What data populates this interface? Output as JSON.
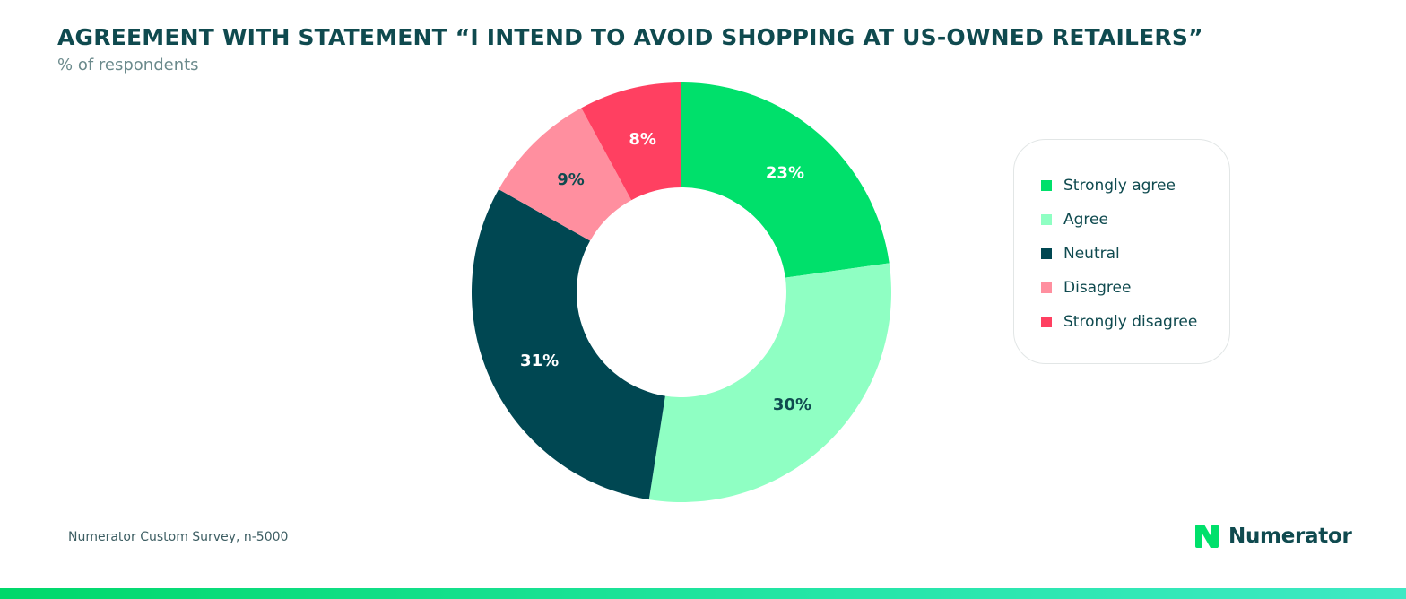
{
  "header": {
    "title": "AGREEMENT WITH STATEMENT “I INTEND TO AVOID SHOPPING AT US-OWNED RETAILERS”",
    "subtitle": "% of respondents"
  },
  "footer": {
    "source": "Numerator Custom Survey, n-5000",
    "brand": "Numerator"
  },
  "colors": {
    "strongly_agree": "#00e06b",
    "agree": "#8fffc3",
    "neutral": "#004752",
    "disagree": "#ff8f9f",
    "strongly_disagree": "#ff4061",
    "title": "#0f4a4f",
    "accent_bar": "#00d86a"
  },
  "chart_data": {
    "type": "pie",
    "donut": true,
    "start": "top",
    "direction": "clockwise",
    "legend_position": "right",
    "title": "AGREEMENT WITH STATEMENT “I INTEND TO AVOID SHOPPING AT US-OWNED RETAILERS”",
    "subtitle": "% of respondents",
    "slices": [
      {
        "label": "Strongly agree",
        "value": 23,
        "display": "23%",
        "color": "#00e06b",
        "label_color": "#ffffff"
      },
      {
        "label": "Agree",
        "value": 30,
        "display": "30%",
        "color": "#8fffc3",
        "label_color": "#0f4a4f"
      },
      {
        "label": "Neutral",
        "value": 31,
        "display": "31%",
        "color": "#004752",
        "label_color": "#ffffff"
      },
      {
        "label": "Disagree",
        "value": 9,
        "display": "9%",
        "color": "#ff8f9f",
        "label_color": "#0f4a4f"
      },
      {
        "label": "Strongly disagree",
        "value": 8,
        "display": "8%",
        "color": "#ff4061",
        "label_color": "#ffffff"
      }
    ]
  }
}
